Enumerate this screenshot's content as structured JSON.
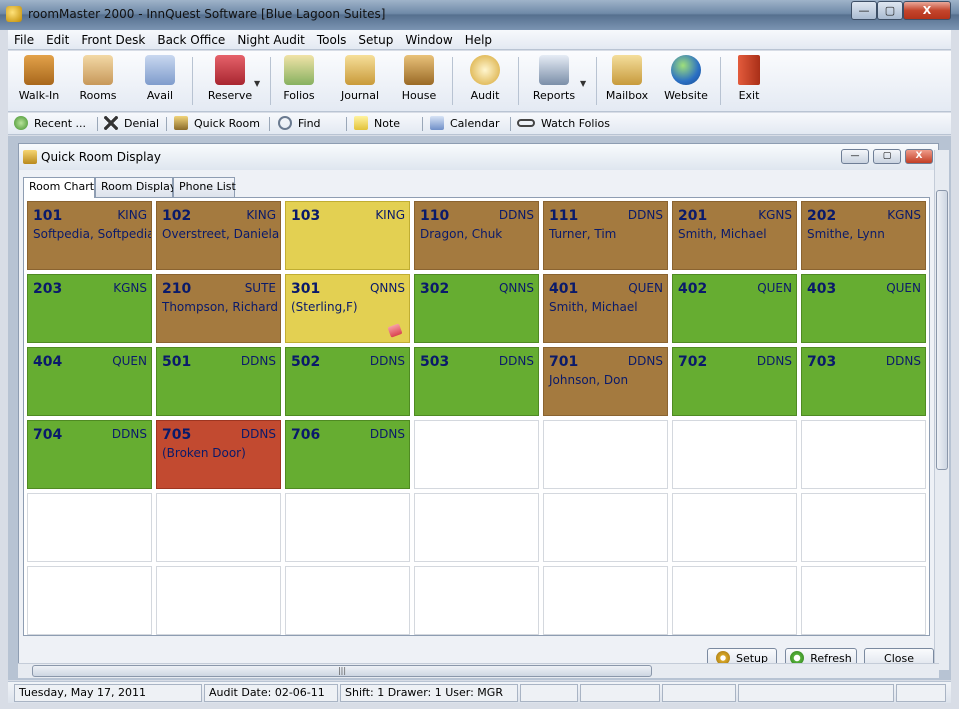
{
  "window": {
    "title": "roomMaster 2000 - InnQuest Software [Blue Lagoon Suites]",
    "minimize_glyph": "—",
    "maximize_glyph": "▢",
    "close_glyph": "X"
  },
  "menu": [
    "File",
    "Edit",
    "Front Desk",
    "Back Office",
    "Night Audit",
    "Tools",
    "Setup",
    "Window",
    "Help"
  ],
  "toolbar": {
    "walk_in": "Walk-In",
    "rooms": "Rooms",
    "avail": "Avail",
    "reserve": "Reserve",
    "folios": "Folios",
    "journal": "Journal",
    "house": "House",
    "audit": "Audit",
    "reports": "Reports",
    "mailbox": "Mailbox",
    "website": "Website",
    "exit": "Exit",
    "dropdown_glyph": "▼"
  },
  "toolbar2": {
    "recent": "Recent ...",
    "denial": "Denial",
    "quick_room": "Quick Room",
    "find": "Find",
    "note": "Note",
    "calendar": "Calendar",
    "watch_folios": "Watch Folios"
  },
  "child_window": {
    "title": "Quick Room Display",
    "min_glyph": "—",
    "max_glyph": "▢",
    "close_glyph": "X"
  },
  "tabs": [
    "Room Chart",
    "Room Display",
    "Phone List"
  ],
  "rooms": [
    {
      "num": "101",
      "type": "KING",
      "guest": "Softpedia, Softpedia",
      "status": "occupied"
    },
    {
      "num": "102",
      "type": "KING",
      "guest": "Overstreet, Daniela",
      "status": "occupied"
    },
    {
      "num": "103",
      "type": "KING",
      "guest": "",
      "status": "due"
    },
    {
      "num": "110",
      "type": "DDNS",
      "guest": "Dragon, Chuk",
      "status": "occupied"
    },
    {
      "num": "111",
      "type": "DDNS",
      "guest": "Turner, Tim",
      "status": "occupied"
    },
    {
      "num": "201",
      "type": "KGNS",
      "guest": "Smith, Michael",
      "status": "occupied"
    },
    {
      "num": "202",
      "type": "KGNS",
      "guest": "Smithe, Lynn",
      "status": "occupied"
    },
    {
      "num": "203",
      "type": "KGNS",
      "guest": "",
      "status": "vacant"
    },
    {
      "num": "210",
      "type": "SUTE",
      "guest": "Thompson, Richard",
      "status": "occupied"
    },
    {
      "num": "301",
      "type": "QNNS",
      "guest": "(Sterling,F)",
      "status": "due",
      "note": true
    },
    {
      "num": "302",
      "type": "QNNS",
      "guest": "",
      "status": "vacant"
    },
    {
      "num": "401",
      "type": "QUEN",
      "guest": "Smith, Michael",
      "status": "occupied"
    },
    {
      "num": "402",
      "type": "QUEN",
      "guest": "",
      "status": "vacant"
    },
    {
      "num": "403",
      "type": "QUEN",
      "guest": "",
      "status": "vacant"
    },
    {
      "num": "404",
      "type": "QUEN",
      "guest": "",
      "status": "vacant"
    },
    {
      "num": "501",
      "type": "DDNS",
      "guest": "",
      "status": "vacant"
    },
    {
      "num": "502",
      "type": "DDNS",
      "guest": "",
      "status": "vacant"
    },
    {
      "num": "503",
      "type": "DDNS",
      "guest": "",
      "status": "vacant"
    },
    {
      "num": "701",
      "type": "DDNS",
      "guest": "Johnson, Don",
      "status": "occupied"
    },
    {
      "num": "702",
      "type": "DDNS",
      "guest": "",
      "status": "vacant"
    },
    {
      "num": "703",
      "type": "DDNS",
      "guest": "",
      "status": "vacant"
    },
    {
      "num": "704",
      "type": "DDNS",
      "guest": "",
      "status": "vacant"
    },
    {
      "num": "705",
      "type": "DDNS",
      "guest": "(Broken Door)",
      "status": "ooo"
    },
    {
      "num": "706",
      "type": "DDNS",
      "guest": "",
      "status": "vacant"
    }
  ],
  "buttons": {
    "setup": "Setup",
    "refresh": "Refresh",
    "close": "Close"
  },
  "hscroll_grip": "|||",
  "statusbar": {
    "date": "Tuesday, May 17, 2011",
    "audit_date": "Audit Date: 02-06-11",
    "shift_user": "Shift: 1   Drawer: 1   User: MGR"
  },
  "colors": {
    "occupied": "#a47a3f",
    "vacant": "#66ad31",
    "due": "#e3d052",
    "out_of_order": "#c24a30"
  }
}
